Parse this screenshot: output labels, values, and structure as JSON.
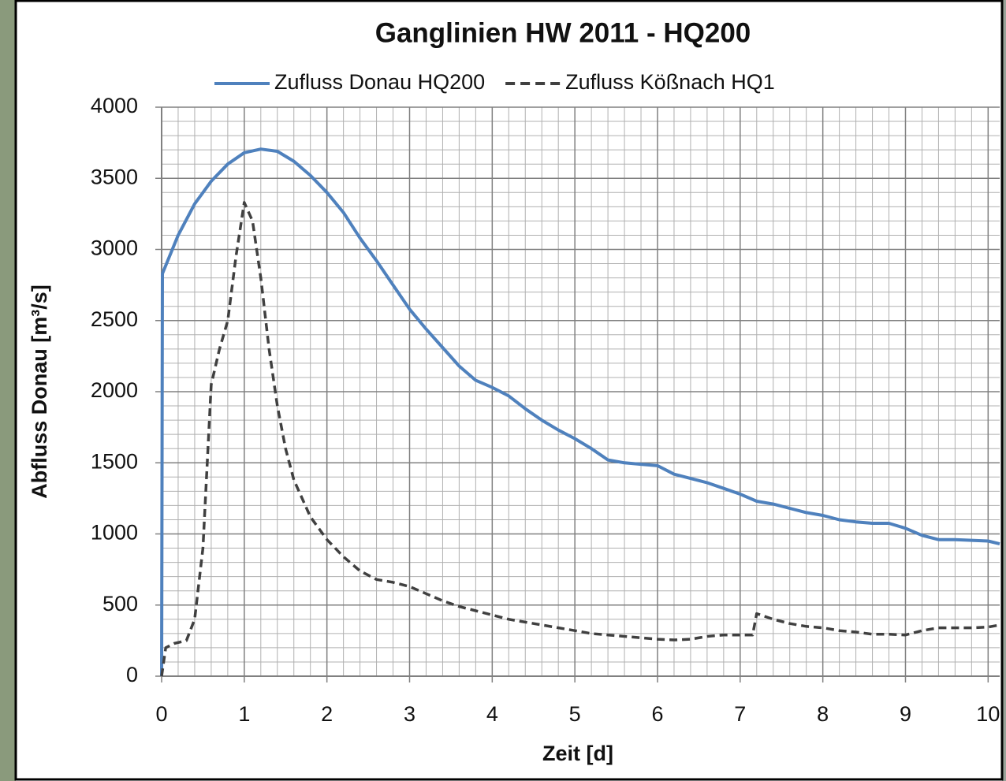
{
  "chart_data": {
    "type": "line",
    "title": "Ganglinien HW 2011 - HQ200",
    "x_label": "Zeit [d]",
    "y_label": "Abfluss Donau [m³/s]",
    "xlim": [
      0,
      10.14
    ],
    "ylim": [
      0,
      4000
    ],
    "xticks": [
      0,
      1,
      2,
      3,
      4,
      5,
      6,
      7,
      8,
      9,
      10
    ],
    "yticks": [
      0,
      500,
      1000,
      1500,
      2000,
      2500,
      3000,
      3500,
      4000
    ],
    "grid": true,
    "legend": "top",
    "series": [
      {
        "name": "Zufluss Donau HQ200",
        "color": "#4f81bd",
        "dash": "solid",
        "x": [
          0,
          0.01,
          0.2,
          0.4,
          0.6,
          0.8,
          1.0,
          1.2,
          1.4,
          1.6,
          1.8,
          2.0,
          2.2,
          2.4,
          2.6,
          2.8,
          3.0,
          3.2,
          3.4,
          3.6,
          3.8,
          4.0,
          4.2,
          4.4,
          4.6,
          4.8,
          5.0,
          5.2,
          5.4,
          5.6,
          5.8,
          6.0,
          6.2,
          6.4,
          6.6,
          6.8,
          7.0,
          7.2,
          7.4,
          7.6,
          7.8,
          8.0,
          8.2,
          8.4,
          8.6,
          8.8,
          9.0,
          9.2,
          9.4,
          9.6,
          9.8,
          10.0,
          10.14
        ],
        "values": [
          0,
          2830,
          3100,
          3320,
          3480,
          3600,
          3680,
          3705,
          3690,
          3620,
          3520,
          3400,
          3260,
          3080,
          2920,
          2750,
          2580,
          2440,
          2310,
          2180,
          2080,
          2030,
          1970,
          1880,
          1800,
          1730,
          1670,
          1600,
          1520,
          1500,
          1490,
          1480,
          1420,
          1390,
          1360,
          1320,
          1280,
          1230,
          1210,
          1180,
          1150,
          1130,
          1100,
          1085,
          1075,
          1075,
          1040,
          990,
          960,
          960,
          955,
          950,
          930
        ]
      },
      {
        "name": "Zufluss Kößnach HQ1",
        "color": "#404040",
        "dash": "dashed",
        "x": [
          0,
          0.05,
          0.15,
          0.3,
          0.4,
          0.5,
          0.6,
          0.7,
          0.8,
          0.9,
          1.0,
          1.1,
          1.2,
          1.3,
          1.4,
          1.5,
          1.6,
          1.8,
          2.0,
          2.2,
          2.4,
          2.6,
          2.8,
          3.0,
          3.2,
          3.4,
          3.6,
          3.8,
          4.0,
          4.2,
          4.4,
          4.6,
          4.8,
          5.0,
          5.2,
          5.4,
          5.6,
          5.8,
          6.0,
          6.2,
          6.4,
          6.6,
          6.8,
          7.0,
          7.15,
          7.2,
          7.4,
          7.6,
          7.8,
          8.0,
          8.2,
          8.4,
          8.6,
          8.8,
          9.0,
          9.2,
          9.4,
          9.6,
          9.8,
          10.0,
          10.14
        ],
        "values": [
          0,
          200,
          230,
          250,
          400,
          900,
          2050,
          2300,
          2500,
          2950,
          3330,
          3200,
          2800,
          2300,
          1900,
          1600,
          1380,
          1120,
          960,
          840,
          740,
          680,
          660,
          630,
          580,
          530,
          490,
          460,
          430,
          400,
          380,
          360,
          340,
          320,
          300,
          290,
          280,
          270,
          260,
          255,
          260,
          280,
          290,
          290,
          290,
          440,
          400,
          370,
          350,
          340,
          320,
          310,
          295,
          295,
          290,
          320,
          340,
          340,
          340,
          345,
          360
        ]
      }
    ]
  }
}
